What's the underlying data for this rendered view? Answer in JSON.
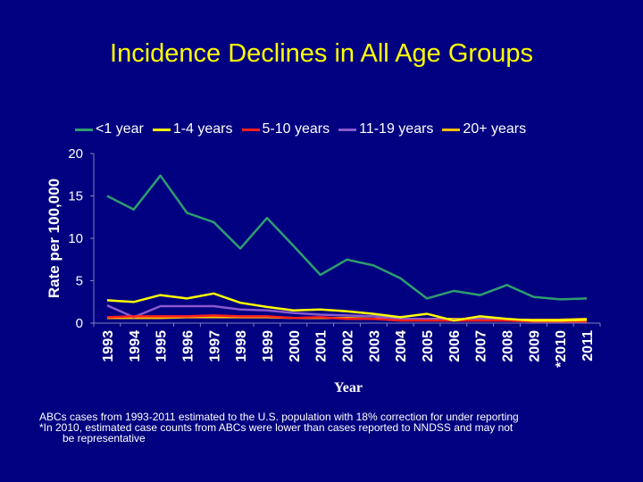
{
  "title": "Incidence Declines in All Age Groups",
  "chart_data": {
    "type": "line",
    "title": "Incidence Declines in All Age Groups",
    "xlabel": "Year",
    "ylabel": "Rate per 100,000",
    "ylim": [
      0,
      20
    ],
    "yticks": [
      0,
      5,
      10,
      15,
      20
    ],
    "grid": false,
    "legend_position": "top",
    "categories": [
      "1993",
      "1994",
      "1995",
      "1996",
      "1997",
      "1998",
      "1999",
      "2000",
      "2001",
      "2002",
      "2003",
      "2004",
      "2005",
      "2006",
      "2007",
      "2008",
      "2009",
      "*2010",
      "2011"
    ],
    "series": [
      {
        "name": "<1 year",
        "color": "#2e9e6e",
        "values": [
          15.0,
          13.4,
          17.4,
          13.0,
          11.9,
          8.8,
          12.4,
          9.1,
          5.7,
          7.5,
          6.8,
          5.3,
          2.9,
          3.8,
          3.3,
          4.5,
          3.1,
          2.8,
          2.9
        ]
      },
      {
        "name": "1-4 years",
        "color": "#ffff00",
        "values": [
          2.7,
          2.5,
          3.3,
          2.9,
          3.5,
          2.4,
          1.9,
          1.5,
          1.6,
          1.4,
          1.1,
          0.7,
          1.1,
          0.3,
          0.8,
          0.5,
          0.3,
          0.3,
          0.4
        ]
      },
      {
        "name": "5-10 years",
        "color": "#ff2020",
        "values": [
          0.7,
          0.8,
          0.8,
          0.8,
          0.9,
          0.8,
          0.8,
          0.6,
          0.7,
          0.5,
          0.5,
          0.3,
          0.3,
          0.3,
          0.3,
          0.3,
          0.2,
          0.2,
          0.2
        ]
      },
      {
        "name": "11-19 years",
        "color": "#8a5acd",
        "values": [
          2.1,
          0.7,
          2.0,
          2.0,
          2.0,
          1.6,
          1.5,
          1.2,
          1.0,
          0.9,
          0.8,
          0.5,
          0.5,
          0.4,
          0.5,
          0.4,
          0.3,
          0.2,
          0.2
        ]
      },
      {
        "name": "20+ years",
        "color": "#ffc000",
        "values": [
          0.6,
          0.6,
          0.6,
          0.7,
          0.7,
          0.7,
          0.7,
          0.6,
          0.6,
          0.6,
          0.5,
          0.5,
          0.5,
          0.5,
          0.4,
          0.4,
          0.4,
          0.4,
          0.5
        ]
      }
    ]
  },
  "footnotes": [
    "ABCs cases from 1993-2011 estimated to the U.S. population with 18% correction for under reporting",
    "*In 2010, estimated case counts from ABCs were lower than cases reported to NNDSS and may not",
    "be representative"
  ],
  "colors": {
    "background": "#000080",
    "title": "#ffff00",
    "text": "#ffffff",
    "axis": "#8080c0"
  }
}
